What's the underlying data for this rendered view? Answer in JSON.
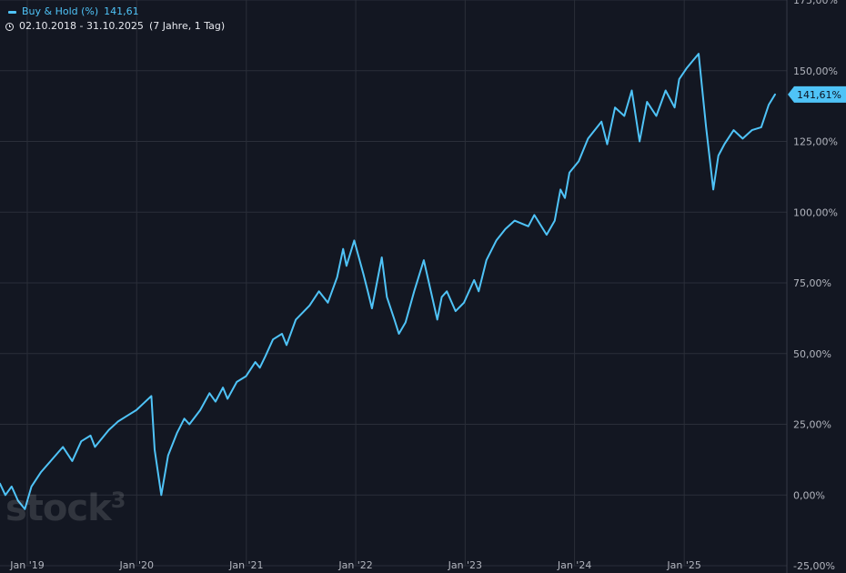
{
  "legend": {
    "series_label": "Buy & Hold (%)",
    "series_value": "141,61",
    "date_range": "02.10.2018 - 31.10.2025",
    "duration": "(7 Jahre, 1 Tag)"
  },
  "watermark": {
    "text": "stock",
    "superscript": "3"
  },
  "colors": {
    "background": "#131722",
    "line": "#4fc3f7",
    "grid": "#2a2e39",
    "axis_text": "#b2b5be"
  },
  "chart_data": {
    "type": "line",
    "title": "",
    "xlabel": "",
    "ylabel": "",
    "ylim": [
      -25,
      175
    ],
    "y_ticks": [
      175,
      150,
      125,
      100,
      75,
      50,
      25,
      0,
      -25
    ],
    "y_tick_labels": [
      "175,00%",
      "150,00%",
      "125,00%",
      "100,00%",
      "75,00%",
      "50,00%",
      "25,00%",
      "0,00%",
      "-25,00%"
    ],
    "xlim": [
      "2018-10-02",
      "2025-10-31"
    ],
    "x_ticks": [
      "2019-01-01",
      "2020-01-01",
      "2021-01-01",
      "2022-01-01",
      "2023-01-01",
      "2024-01-01",
      "2025-01-01"
    ],
    "x_tick_labels": [
      "Jan '19",
      "Jan '20",
      "Jan '21",
      "Jan '22",
      "Jan '23",
      "Jan '24",
      "Jan '25"
    ],
    "last_value_label": "141,61%",
    "grid": true,
    "series": [
      {
        "x": [
          "2018-10-02",
          "2018-10-20",
          "2018-11-10",
          "2018-12-01",
          "2018-12-24",
          "2019-01-15",
          "2019-02-15",
          "2019-03-20",
          "2019-04-30",
          "2019-05-31",
          "2019-06-30",
          "2019-07-31",
          "2019-08-15",
          "2019-09-30",
          "2019-10-31",
          "2019-11-30",
          "2019-12-31",
          "2020-01-20",
          "2020-02-19",
          "2020-03-01",
          "2020-03-23",
          "2020-04-15",
          "2020-05-15",
          "2020-06-08",
          "2020-06-25",
          "2020-07-31",
          "2020-08-31",
          "2020-09-20",
          "2020-10-15",
          "2020-10-30",
          "2020-11-30",
          "2020-12-31",
          "2021-01-31",
          "2021-02-15",
          "2021-03-05",
          "2021-03-31",
          "2021-04-30",
          "2021-05-15",
          "2021-06-15",
          "2021-07-31",
          "2021-08-31",
          "2021-09-30",
          "2021-10-31",
          "2021-11-20",
          "2021-12-01",
          "2021-12-27",
          "2022-01-27",
          "2022-02-10",
          "2022-02-24",
          "2022-03-29",
          "2022-04-15",
          "2022-05-10",
          "2022-05-25",
          "2022-06-16",
          "2022-07-15",
          "2022-08-16",
          "2022-09-30",
          "2022-10-15",
          "2022-11-01",
          "2022-11-30",
          "2022-12-28",
          "2023-01-31",
          "2023-02-15",
          "2023-03-13",
          "2023-04-15",
          "2023-05-15",
          "2023-06-15",
          "2023-07-31",
          "2023-08-20",
          "2023-09-30",
          "2023-10-27",
          "2023-11-15",
          "2023-11-30",
          "2023-12-15",
          "2024-01-15",
          "2024-02-15",
          "2024-03-31",
          "2024-04-19",
          "2024-05-15",
          "2024-06-15",
          "2024-07-10",
          "2024-08-05",
          "2024-08-30",
          "2024-09-30",
          "2024-10-31",
          "2024-11-30",
          "2024-12-15",
          "2025-01-10",
          "2025-02-18",
          "2025-03-15",
          "2025-04-08",
          "2025-04-25",
          "2025-05-15",
          "2025-06-15",
          "2025-07-15",
          "2025-08-15",
          "2025-09-15",
          "2025-10-10",
          "2025-10-31"
        ],
        "y": [
          4,
          0,
          3,
          -2,
          -5,
          3,
          8,
          12,
          17,
          12,
          19,
          21,
          17,
          23,
          26,
          28,
          30,
          32,
          35,
          16,
          0,
          14,
          22,
          27,
          25,
          30,
          36,
          33,
          38,
          34,
          40,
          42,
          47,
          45,
          49,
          55,
          57,
          53,
          62,
          67,
          72,
          68,
          77,
          87,
          81,
          90,
          78,
          72,
          66,
          84,
          70,
          62,
          57,
          61,
          72,
          83,
          62,
          70,
          72,
          65,
          68,
          76,
          72,
          83,
          90,
          94,
          97,
          95,
          99,
          92,
          97,
          108,
          105,
          114,
          118,
          126,
          132,
          124,
          137,
          134,
          143,
          125,
          139,
          134,
          143,
          137,
          147,
          151,
          156,
          130,
          108,
          120,
          124,
          129,
          126,
          129,
          130,
          138,
          141.61
        ]
      }
    ]
  }
}
